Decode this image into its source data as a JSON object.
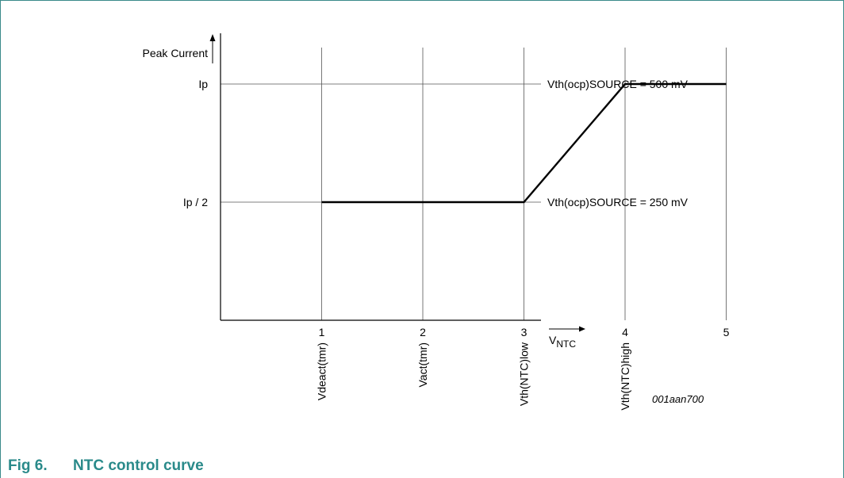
{
  "figure": {
    "caption_number": "Fig 6.",
    "caption_title": "NTC control curve",
    "code": "001aan700"
  },
  "chart_data": {
    "type": "line",
    "ylabel": "Peak Current",
    "xlabel_main": "V",
    "xlabel_sub": "NTC",
    "x_ticks": [
      "1",
      "2",
      "3",
      "4",
      "5"
    ],
    "x_tick_values": [
      1,
      2,
      3,
      4,
      5
    ],
    "x_marker_labels": [
      "Vdeact(tmr)",
      "Vact(tmr)",
      "Vth(NTC)low",
      "Vth(NTC)high"
    ],
    "y_ticks": [
      "Ip / 2",
      "Ip"
    ],
    "y_tick_values": [
      0.5,
      1.0
    ],
    "xlim": [
      0,
      6.0
    ],
    "ylim": [
      0,
      1.2
    ],
    "reference_lines": [
      {
        "y": 1.0,
        "label": "Vth(ocp)SOURCE = 500 mV"
      },
      {
        "y": 0.5,
        "label": "Vth(ocp)SOURCE = 250 mV"
      }
    ],
    "series": [
      {
        "x": [
          1,
          3,
          4,
          5
        ],
        "y": [
          0.5,
          0.5,
          1.0,
          1.0
        ]
      }
    ],
    "grid": "vertical lines at x ticks, horizontal lines at y ticks"
  }
}
